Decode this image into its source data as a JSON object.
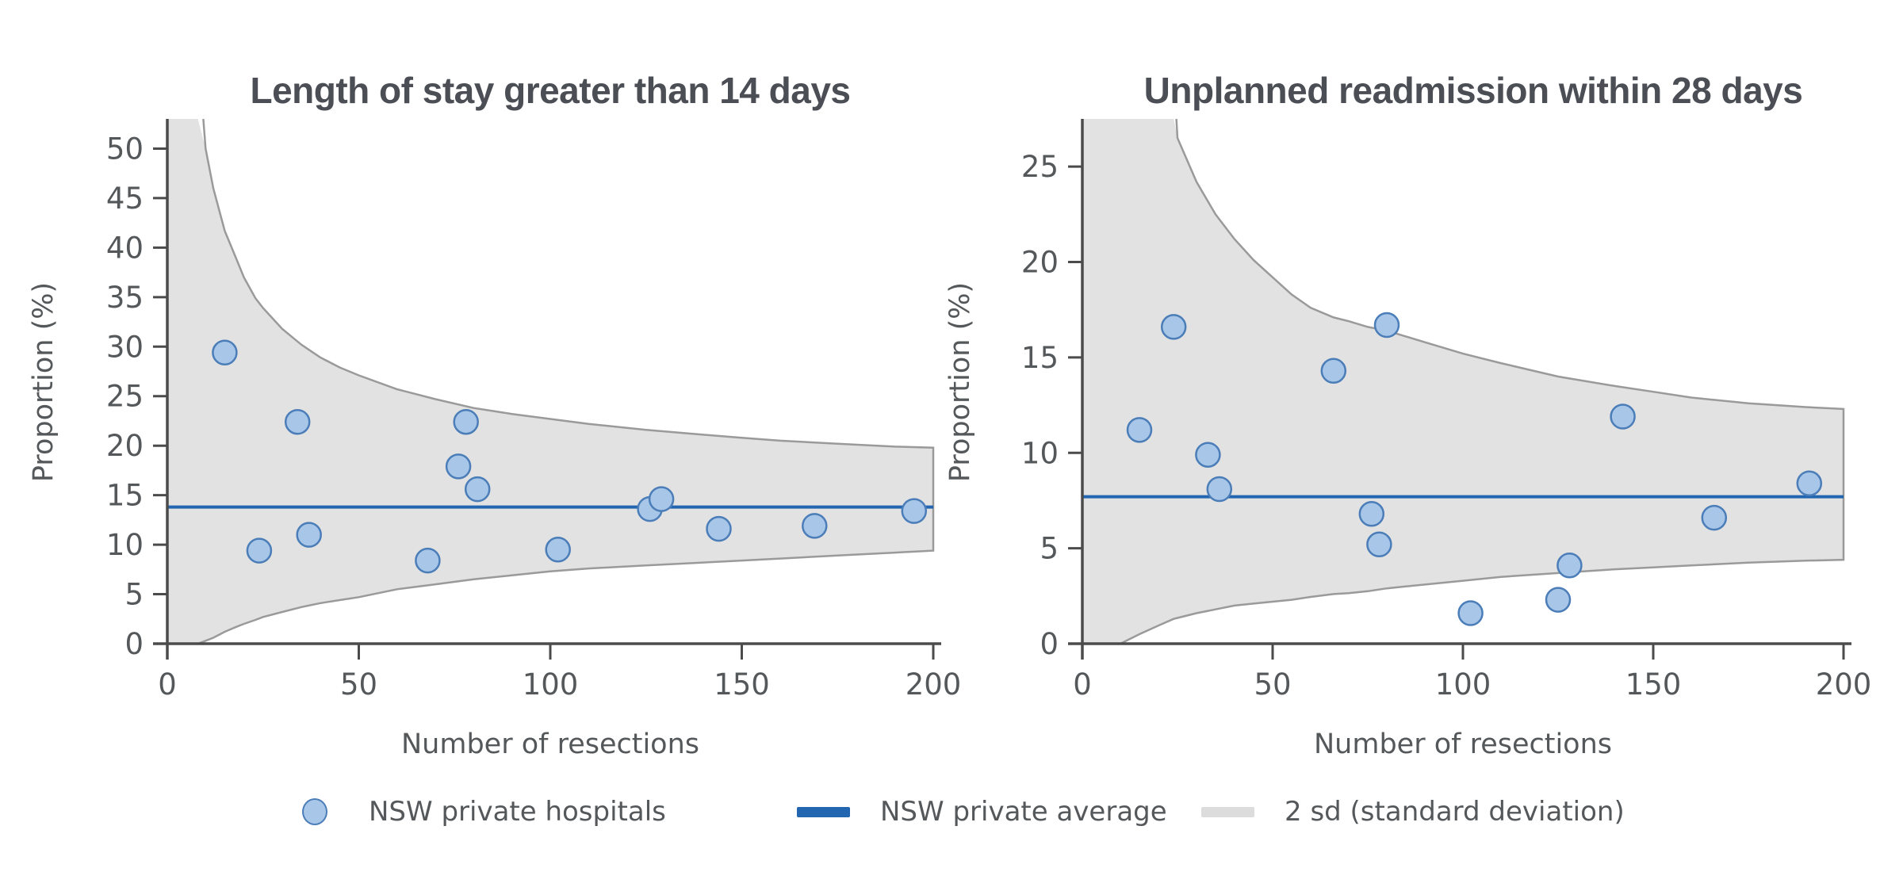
{
  "page": {
    "background": "#ffffff"
  },
  "colors": {
    "hospital_point_fill": "#a8c7e8",
    "hospital_point_stroke": "#4b7db8",
    "average_line": "#2265b0",
    "band_fill": "#e2e2e2",
    "band_stroke": "#9a9a9a",
    "axis": "#4b4b4b",
    "tick_label": "#55585a",
    "title": "#4b4e54",
    "legend_band_swatch": "#dcdcdc"
  },
  "chart_data": [
    {
      "type": "scatter",
      "subtype": "funnel-plot",
      "title": "Length of stay greater than 14 days",
      "xlabel": "Number of resections",
      "ylabel": "Proportion (%)",
      "xlim": [
        0,
        200
      ],
      "ylim": [
        0,
        53
      ],
      "x_ticks": [
        0,
        50,
        100,
        150,
        200
      ],
      "y_ticks": [
        0,
        5,
        10,
        15,
        20,
        25,
        30,
        35,
        40,
        45,
        50
      ],
      "grid": false,
      "series_name": "NSW private hospitals",
      "points": [
        [
          15,
          29.4
        ],
        [
          24,
          9.4
        ],
        [
          34,
          22.4
        ],
        [
          37,
          11.0
        ],
        [
          68,
          8.4
        ],
        [
          76,
          17.9
        ],
        [
          78,
          22.4
        ],
        [
          81,
          15.6
        ],
        [
          102,
          9.5
        ],
        [
          126,
          13.6
        ],
        [
          129,
          14.6
        ],
        [
          144,
          11.6
        ],
        [
          169,
          11.9
        ],
        [
          195,
          13.4
        ]
      ],
      "average": 13.8,
      "band_2sd": [
        [
          0,
          0,
          60
        ],
        [
          8,
          0,
          60
        ],
        [
          10,
          0.3,
          50
        ],
        [
          12,
          0.6,
          46
        ],
        [
          15,
          1.2,
          41.7
        ],
        [
          18,
          1.7,
          38.9
        ],
        [
          20,
          2.0,
          37.0
        ],
        [
          23,
          2.4,
          34.9
        ],
        [
          25,
          2.7,
          33.9
        ],
        [
          30,
          3.2,
          31.8
        ],
        [
          35,
          3.7,
          30.2
        ],
        [
          40,
          4.1,
          28.9
        ],
        [
          45,
          4.4,
          27.9
        ],
        [
          50,
          4.7,
          27.1
        ],
        [
          60,
          5.5,
          25.7
        ],
        [
          70,
          6.0,
          24.7
        ],
        [
          80,
          6.5,
          23.8
        ],
        [
          90,
          6.9,
          23.2
        ],
        [
          100,
          7.3,
          22.7
        ],
        [
          110,
          7.6,
          22.2
        ],
        [
          125,
          7.9,
          21.6
        ],
        [
          140,
          8.2,
          21.1
        ],
        [
          150,
          8.4,
          20.8
        ],
        [
          160,
          8.6,
          20.5
        ],
        [
          175,
          8.9,
          20.2
        ],
        [
          190,
          9.2,
          19.9
        ],
        [
          200,
          9.4,
          19.8
        ]
      ]
    },
    {
      "type": "scatter",
      "subtype": "funnel-plot",
      "title": "Unplanned readmission within 28 days",
      "xlabel": "Number of resections",
      "ylabel": "Proportion (%)",
      "xlim": [
        0,
        200
      ],
      "ylim": [
        0,
        27.5
      ],
      "x_ticks": [
        0,
        50,
        100,
        150,
        200
      ],
      "y_ticks": [
        0,
        5,
        10,
        15,
        20,
        25
      ],
      "grid": false,
      "series_name": "NSW private hospitals",
      "points": [
        [
          15,
          11.2
        ],
        [
          24,
          16.6
        ],
        [
          33,
          9.9
        ],
        [
          36,
          8.1
        ],
        [
          66,
          14.3
        ],
        [
          76,
          6.8
        ],
        [
          78,
          5.2
        ],
        [
          80,
          16.7
        ],
        [
          102,
          1.6
        ],
        [
          125,
          2.3
        ],
        [
          128,
          4.1
        ],
        [
          142,
          11.9
        ],
        [
          166,
          6.6
        ],
        [
          191,
          8.4
        ]
      ],
      "average": 7.7,
      "band_2sd": [
        [
          0,
          0,
          30
        ],
        [
          10,
          0,
          30
        ],
        [
          15,
          0.5,
          30
        ],
        [
          20,
          0.95,
          30
        ],
        [
          24,
          1.3,
          30
        ],
        [
          25,
          1.35,
          26.5
        ],
        [
          30,
          1.6,
          24.2
        ],
        [
          35,
          1.8,
          22.5
        ],
        [
          40,
          2.0,
          21.2
        ],
        [
          45,
          2.1,
          20.1
        ],
        [
          50,
          2.2,
          19.2
        ],
        [
          55,
          2.3,
          18.3
        ],
        [
          60,
          2.45,
          17.6
        ],
        [
          66,
          2.6,
          17.1
        ],
        [
          70,
          2.65,
          16.9
        ],
        [
          75,
          2.75,
          16.6
        ],
        [
          80,
          2.9,
          16.4
        ],
        [
          85,
          3.0,
          16.1
        ],
        [
          90,
          3.1,
          15.8
        ],
        [
          100,
          3.3,
          15.2
        ],
        [
          110,
          3.5,
          14.7
        ],
        [
          125,
          3.7,
          14.0
        ],
        [
          140,
          3.9,
          13.5
        ],
        [
          150,
          4.0,
          13.2
        ],
        [
          160,
          4.1,
          12.9
        ],
        [
          175,
          4.25,
          12.6
        ],
        [
          190,
          4.35,
          12.4
        ],
        [
          200,
          4.4,
          12.3
        ]
      ]
    }
  ],
  "legend": {
    "items": [
      {
        "swatch": "point-circle",
        "label": "NSW private hospitals"
      },
      {
        "swatch": "average-line",
        "label": "NSW private average"
      },
      {
        "swatch": "sd-band",
        "label": "2 sd (standard deviation)"
      }
    ]
  }
}
